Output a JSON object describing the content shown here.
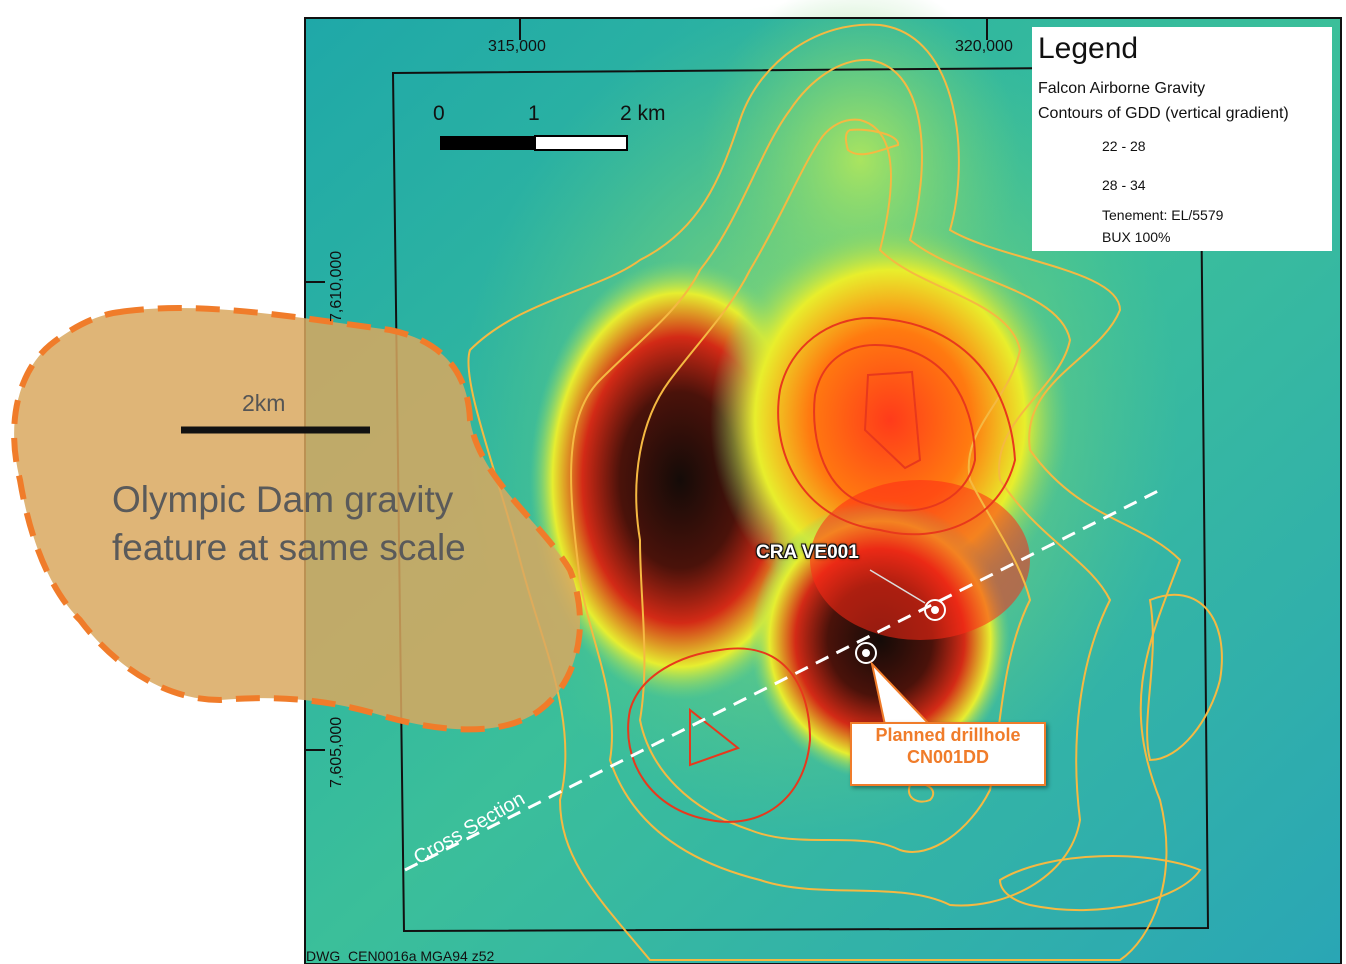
{
  "map": {
    "scale_bar": {
      "labels": [
        "0",
        "1",
        "2 km"
      ]
    },
    "coordinates": {
      "easting": [
        "315,000",
        "320,000"
      ],
      "northing": [
        "7,610,000",
        "7,605,000"
      ]
    },
    "legend": {
      "title": "Legend",
      "subtitle_line1": "Falcon Airborne Gravity",
      "subtitle_line2": "Contours of GDD (vertical gradient)",
      "items": [
        {
          "label": "22 - 28",
          "color": "#f5b942"
        },
        {
          "label": "28 - 34",
          "color": "#e8381c"
        },
        {
          "label": "Tenement: EL/5579",
          "label2": "BUX 100%",
          "color": "#111111"
        }
      ]
    },
    "olympic_dam": {
      "scale_label": "2km",
      "text_line1": "Olympic Dam gravity",
      "text_line2": "feature at same scale",
      "fill_color": "#d9a85f",
      "outline_color": "#f07c2a"
    },
    "drillholes": {
      "existing_label": "CRA VE001",
      "planned_line1": "Planned drillhole",
      "planned_line2": "CN001DD"
    },
    "cross_section_label": "Cross Section",
    "drawing_ref": "DWG_CEN0016a MGA94 z52"
  }
}
